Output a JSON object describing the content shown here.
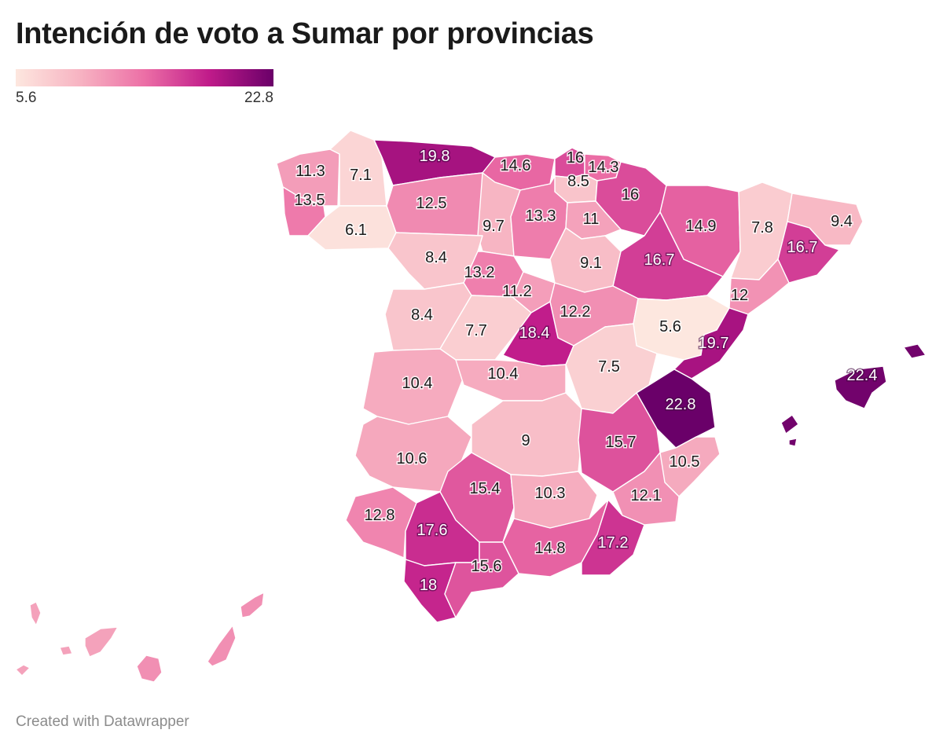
{
  "title": "Intención de voto a Sumar por provincias",
  "legend": {
    "min_label": "5.6",
    "max_label": "22.8",
    "min": 5.6,
    "max": 22.8
  },
  "colors": {
    "low": "#fde7df",
    "high": "#6a0069"
  },
  "regions": [
    {
      "id": "a-coruna",
      "value": "11.3"
    },
    {
      "id": "lugo",
      "value": "7.1"
    },
    {
      "id": "asturias",
      "value": "19.8"
    },
    {
      "id": "cantabria",
      "value": "14.6"
    },
    {
      "id": "bizkaia",
      "value": "16"
    },
    {
      "id": "gipuzkoa",
      "value": "14.3"
    },
    {
      "id": "araba",
      "value": "8.5"
    },
    {
      "id": "navarra",
      "value": "16"
    },
    {
      "id": "pontevedra",
      "value": "13.5"
    },
    {
      "id": "ourense",
      "value": "6.1"
    },
    {
      "id": "leon",
      "value": "12.5"
    },
    {
      "id": "palencia",
      "value": "9.7"
    },
    {
      "id": "burgos",
      "value": "13.3"
    },
    {
      "id": "la-rioja",
      "value": "11"
    },
    {
      "id": "huesca",
      "value": "14.9"
    },
    {
      "id": "lleida",
      "value": "7.8"
    },
    {
      "id": "girona",
      "value": "9.4"
    },
    {
      "id": "barcelona",
      "value": "16.7"
    },
    {
      "id": "zaragoza",
      "value": "16.7"
    },
    {
      "id": "zamora",
      "value": "8.4"
    },
    {
      "id": "valladolid",
      "value": "13.2"
    },
    {
      "id": "soria",
      "value": "9.1"
    },
    {
      "id": "segovia",
      "value": "11.2"
    },
    {
      "id": "tarragona",
      "value": "12"
    },
    {
      "id": "salamanca",
      "value": "8.4"
    },
    {
      "id": "avila",
      "value": "7.7"
    },
    {
      "id": "madrid",
      "value": "18.4"
    },
    {
      "id": "guadalajara",
      "value": "12.2"
    },
    {
      "id": "teruel",
      "value": "5.6"
    },
    {
      "id": "castellon",
      "value": "19.7"
    },
    {
      "id": "cuenca",
      "value": "7.5"
    },
    {
      "id": "toledo",
      "value": "10.4"
    },
    {
      "id": "caceres",
      "value": "10.4"
    },
    {
      "id": "valencia",
      "value": "22.8"
    },
    {
      "id": "baleares",
      "value": "22.4"
    },
    {
      "id": "ciudad-real",
      "value": "9"
    },
    {
      "id": "albacete",
      "value": "15.7"
    },
    {
      "id": "badajoz",
      "value": "10.6"
    },
    {
      "id": "alicante",
      "value": "10.5"
    },
    {
      "id": "cordoba",
      "value": "15.4"
    },
    {
      "id": "jaen",
      "value": "10.3"
    },
    {
      "id": "murcia",
      "value": "12.1"
    },
    {
      "id": "huelva",
      "value": "12.8"
    },
    {
      "id": "sevilla",
      "value": "17.6"
    },
    {
      "id": "granada",
      "value": "14.8"
    },
    {
      "id": "almeria",
      "value": "17.2"
    },
    {
      "id": "cadiz",
      "value": "18"
    },
    {
      "id": "malaga",
      "value": "15.6"
    },
    {
      "id": "las-palmas",
      "value": null
    },
    {
      "id": "santa-cruz-de-tenerife",
      "value": null
    }
  ],
  "credit": "Created with Datawrapper"
}
